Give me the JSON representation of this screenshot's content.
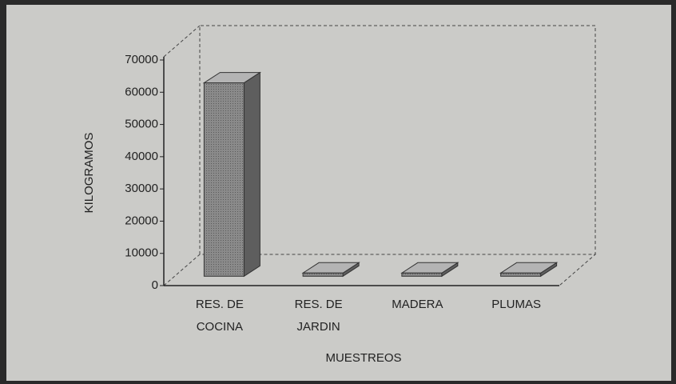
{
  "chart_data": {
    "type": "bar3d",
    "categories": [
      [
        "RES. DE",
        "COCINA"
      ],
      [
        "RES. DE",
        "JARDIN"
      ],
      [
        "MADERA"
      ],
      [
        "PLUMAS"
      ]
    ],
    "values": [
      60000,
      1000,
      1000,
      1000
    ],
    "color": "#8a8a8a",
    "ylim": [
      0,
      70000
    ],
    "yticks": [
      0,
      10000,
      20000,
      30000,
      40000,
      50000,
      60000,
      70000
    ],
    "ylabel": "KILOGRAMOS",
    "xlabel": "MUESTREOS"
  }
}
